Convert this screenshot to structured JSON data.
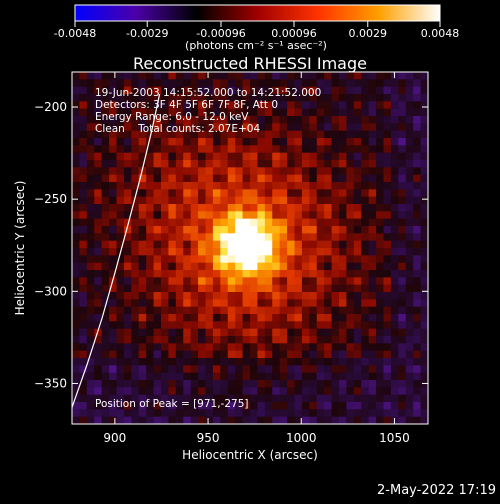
{
  "chart_data": {
    "type": "heatmap",
    "title": "Reconstructed RHESSI Image",
    "xlabel": "Heliocentric X (arcsec)",
    "ylabel": "Heliocentric Y (arcsec)",
    "xlim": [
      877,
      1068
    ],
    "ylim": [
      -372,
      -181
    ],
    "x_ticks": [
      900,
      950,
      1000,
      1050
    ],
    "y_ticks": [
      -200,
      -250,
      -300,
      -350
    ],
    "grid": false,
    "colorbar": {
      "location": "top",
      "range": [
        -0.0048,
        0.0048
      ],
      "ticks": [
        "-0.0048",
        "-0.0029",
        "-0.00096",
        "0.00096",
        "0.0029",
        "0.0048"
      ],
      "label": "(photons cm⁻² s⁻¹ asec⁻²)",
      "colors": [
        "#0000ff",
        "#4b00a8",
        "#000000",
        "#a00000",
        "#ff3300",
        "#ffa000",
        "#ffffff"
      ]
    },
    "annotations": [
      "19-Jun-2003 14:15:52.000 to 14:21:52.000",
      "Detectors: 3F 4F 5F 6F 7F 8F, Att 0",
      "Energy Range: 6.0 - 12.0 keV",
      "Clean    Total counts: 2.07E+04"
    ],
    "peak_label": "Position of Peak = [971,-275]",
    "peak": {
      "x": 971,
      "y": -275
    },
    "image_grid": {
      "nx": 48,
      "ny": 48
    },
    "limb": [
      {
        "x": 877,
        "y": -363
      },
      {
        "x": 885,
        "y": -340
      },
      {
        "x": 893,
        "y": -315
      },
      {
        "x": 900,
        "y": -290
      },
      {
        "x": 907,
        "y": -264
      },
      {
        "x": 914,
        "y": -237
      },
      {
        "x": 920,
        "y": -212
      },
      {
        "x": 924,
        "y": -193
      }
    ]
  },
  "footer": {
    "timestamp": "2-May-2022 17:19"
  }
}
